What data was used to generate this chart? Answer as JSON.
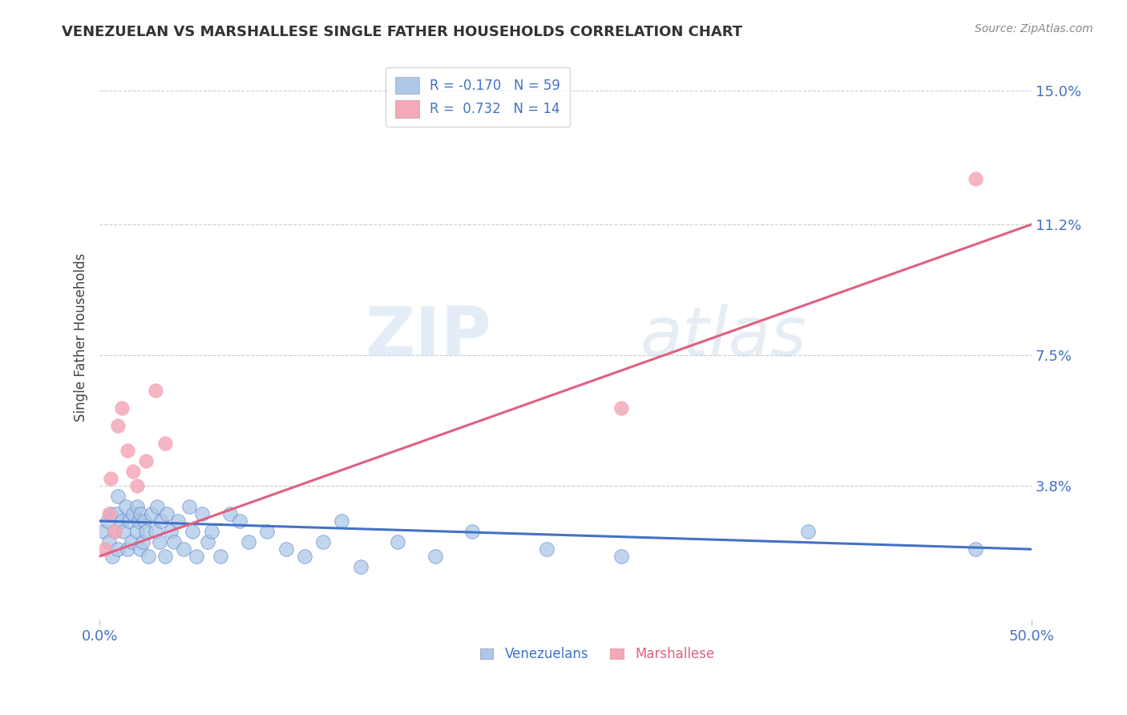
{
  "title": "VENEZUELAN VS MARSHALLESE SINGLE FATHER HOUSEHOLDS CORRELATION CHART",
  "source": "Source: ZipAtlas.com",
  "ylabel": "Single Father Households",
  "xlim": [
    0.0,
    0.5
  ],
  "ylim": [
    0.0,
    0.16
  ],
  "yticks": [
    0.0,
    0.038,
    0.075,
    0.112,
    0.15
  ],
  "ytick_labels": [
    "",
    "3.8%",
    "7.5%",
    "11.2%",
    "15.0%"
  ],
  "xticks": [
    0.0,
    0.5
  ],
  "xtick_labels": [
    "0.0%",
    "50.0%"
  ],
  "R_venezuelan": -0.17,
  "N_venezuelan": 59,
  "R_marshallese": 0.732,
  "N_marshallese": 14,
  "color_venezuelan": "#adc8e8",
  "color_marshallese": "#f4a8b8",
  "line_color_venezuelan": "#4472c4",
  "line_color_marshallese": "#e06080",
  "background_color": "#ffffff",
  "venezuelan_x": [
    0.002,
    0.004,
    0.005,
    0.006,
    0.007,
    0.008,
    0.009,
    0.01,
    0.01,
    0.012,
    0.013,
    0.014,
    0.015,
    0.016,
    0.017,
    0.018,
    0.02,
    0.02,
    0.021,
    0.022,
    0.022,
    0.023,
    0.024,
    0.025,
    0.026,
    0.028,
    0.03,
    0.031,
    0.032,
    0.033,
    0.035,
    0.036,
    0.038,
    0.04,
    0.042,
    0.045,
    0.048,
    0.05,
    0.052,
    0.055,
    0.058,
    0.06,
    0.065,
    0.07,
    0.075,
    0.08,
    0.09,
    0.1,
    0.11,
    0.12,
    0.13,
    0.14,
    0.16,
    0.18,
    0.2,
    0.24,
    0.28,
    0.38,
    0.47
  ],
  "venezuelan_y": [
    0.025,
    0.028,
    0.022,
    0.03,
    0.018,
    0.025,
    0.03,
    0.02,
    0.035,
    0.028,
    0.025,
    0.032,
    0.02,
    0.028,
    0.022,
    0.03,
    0.025,
    0.032,
    0.028,
    0.02,
    0.03,
    0.022,
    0.028,
    0.025,
    0.018,
    0.03,
    0.025,
    0.032,
    0.022,
    0.028,
    0.018,
    0.03,
    0.025,
    0.022,
    0.028,
    0.02,
    0.032,
    0.025,
    0.018,
    0.03,
    0.022,
    0.025,
    0.018,
    0.03,
    0.028,
    0.022,
    0.025,
    0.02,
    0.018,
    0.022,
    0.028,
    0.015,
    0.022,
    0.018,
    0.025,
    0.02,
    0.018,
    0.025,
    0.02
  ],
  "marshallese_x": [
    0.003,
    0.005,
    0.006,
    0.008,
    0.01,
    0.012,
    0.015,
    0.018,
    0.02,
    0.025,
    0.03,
    0.035,
    0.28,
    0.47
  ],
  "marshallese_y": [
    0.02,
    0.03,
    0.04,
    0.025,
    0.055,
    0.06,
    0.048,
    0.042,
    0.038,
    0.045,
    0.065,
    0.05,
    0.06,
    0.125
  ],
  "ven_line_x": [
    0.0,
    0.5
  ],
  "ven_line_y": [
    0.028,
    0.02
  ],
  "mar_line_x": [
    0.0,
    0.5
  ],
  "mar_line_y": [
    0.018,
    0.112
  ]
}
